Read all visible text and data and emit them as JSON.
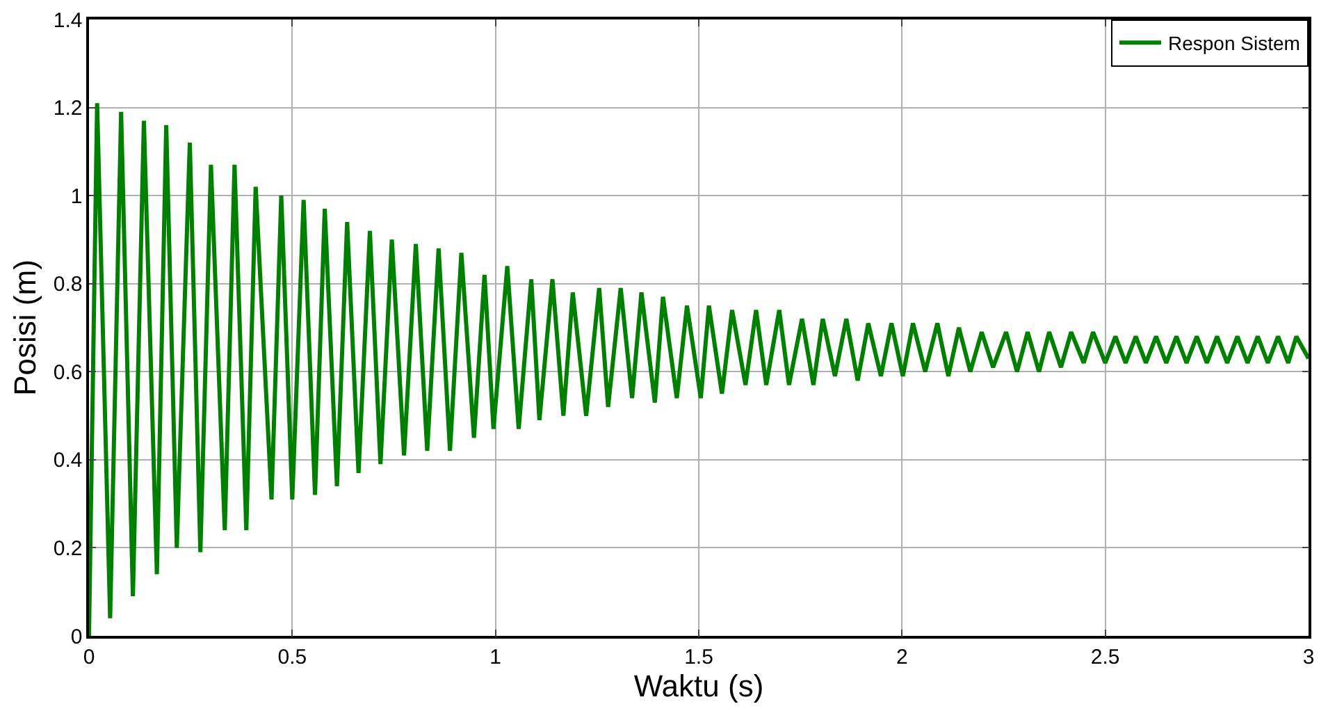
{
  "chart_data": {
    "type": "line",
    "xlabel": "Waktu (s)",
    "ylabel": "Posisi (m)",
    "xlim": [
      0,
      3
    ],
    "xticks": [
      0,
      0.5,
      1,
      1.5,
      2,
      2.5,
      3
    ],
    "ylim": [
      0,
      1.4
    ],
    "yticks": [
      0,
      0.2,
      0.4,
      0.6,
      0.8,
      1,
      1.2,
      1.4
    ],
    "grid": true,
    "legend": "top right",
    "marker": "none",
    "line_style": "solid",
    "x": [
      0,
      0.02,
      0.052,
      0.079,
      0.108,
      0.135,
      0.167,
      0.19,
      0.216,
      0.248,
      0.274,
      0.3,
      0.334,
      0.358,
      0.387,
      0.41,
      0.449,
      0.473,
      0.5,
      0.528,
      0.556,
      0.58,
      0.61,
      0.635,
      0.663,
      0.691,
      0.717,
      0.745,
      0.775,
      0.804,
      0.832,
      0.86,
      0.888,
      0.916,
      0.947,
      0.973,
      0.995,
      1.029,
      1.057,
      1.088,
      1.108,
      1.14,
      1.167,
      1.19,
      1.223,
      1.255,
      1.277,
      1.308,
      1.336,
      1.359,
      1.392,
      1.412,
      1.446,
      1.471,
      1.505,
      1.525,
      1.557,
      1.582,
      1.615,
      1.641,
      1.666,
      1.698,
      1.722,
      1.754,
      1.782,
      1.805,
      1.835,
      1.863,
      1.891,
      1.917,
      1.948,
      1.974,
      2.002,
      2.027,
      2.057,
      2.087,
      2.114,
      2.14,
      2.168,
      2.196,
      2.224,
      2.256,
      2.283,
      2.309,
      2.337,
      2.362,
      2.391,
      2.416,
      2.447,
      2.47,
      2.5,
      2.525,
      2.55,
      2.575,
      2.6,
      2.625,
      2.65,
      2.675,
      2.7,
      2.725,
      2.75,
      2.775,
      2.8,
      2.825,
      2.85,
      2.875,
      2.9,
      2.925,
      2.95,
      2.97,
      3.0
    ],
    "series": [
      {
        "name": "Respon Sistem",
        "color": "#008000",
        "values": [
          0,
          1.21,
          0.04,
          1.19,
          0.09,
          1.17,
          0.14,
          1.16,
          0.2,
          1.12,
          0.19,
          1.07,
          0.24,
          1.07,
          0.24,
          1.02,
          0.31,
          1.0,
          0.31,
          0.99,
          0.32,
          0.97,
          0.34,
          0.94,
          0.37,
          0.92,
          0.39,
          0.9,
          0.41,
          0.89,
          0.42,
          0.88,
          0.42,
          0.87,
          0.45,
          0.82,
          0.47,
          0.84,
          0.47,
          0.81,
          0.49,
          0.81,
          0.5,
          0.78,
          0.5,
          0.79,
          0.52,
          0.79,
          0.54,
          0.78,
          0.53,
          0.77,
          0.54,
          0.75,
          0.54,
          0.75,
          0.55,
          0.74,
          0.57,
          0.74,
          0.57,
          0.74,
          0.57,
          0.72,
          0.57,
          0.72,
          0.59,
          0.72,
          0.58,
          0.71,
          0.59,
          0.71,
          0.59,
          0.71,
          0.6,
          0.71,
          0.59,
          0.7,
          0.6,
          0.69,
          0.61,
          0.69,
          0.6,
          0.69,
          0.6,
          0.69,
          0.61,
          0.69,
          0.62,
          0.69,
          0.62,
          0.68,
          0.62,
          0.68,
          0.62,
          0.68,
          0.62,
          0.68,
          0.62,
          0.68,
          0.62,
          0.68,
          0.62,
          0.68,
          0.62,
          0.68,
          0.62,
          0.68,
          0.62,
          0.68,
          0.63
        ]
      }
    ]
  }
}
